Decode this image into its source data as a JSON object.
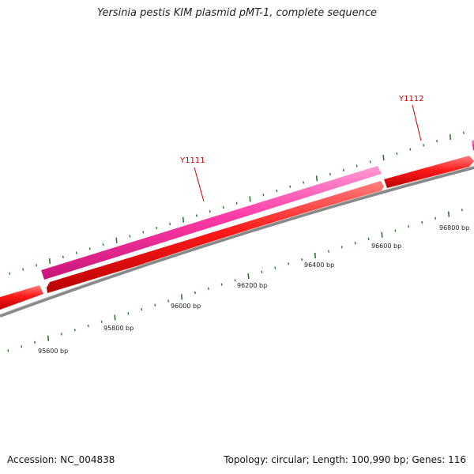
{
  "title": "Yersinia pestis KIM plasmid pMT-1, complete sequence",
  "footer": {
    "accession_label": "Accession:",
    "accession": "NC_004838",
    "topology_text": "Topology: circular; Length: 100,990 bp; Genes: 116"
  },
  "genes": [
    {
      "name": "Y1111",
      "color": "#ff3aa6"
    },
    {
      "name": "Y1112",
      "color": "#ff3aa6"
    }
  ],
  "scale_labels": [
    "95600 bp",
    "95800 bp",
    "96000 bp",
    "96200 bp",
    "96400 bp",
    "96600 bp",
    "96800 bp"
  ],
  "colors": {
    "forward_gene": "#ff3aa6",
    "reverse_gene": "#ff1a1a",
    "backbone": "#888888",
    "tick": "#2a7a2a",
    "label": "#cc0000"
  }
}
